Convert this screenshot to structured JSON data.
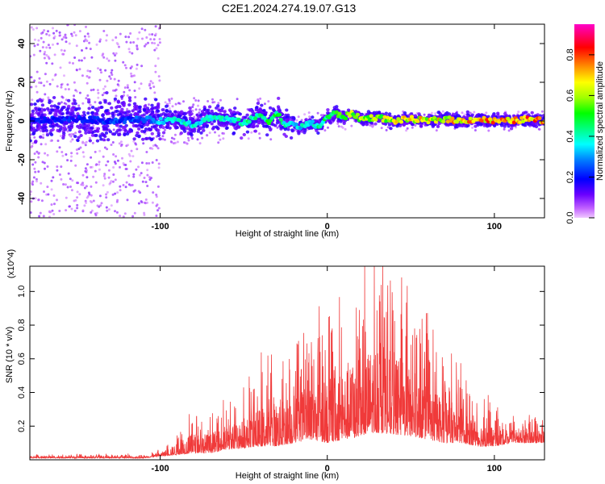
{
  "title": "C2E1.2024.274.19.07.G13",
  "chart_data": [
    {
      "type": "heatmap",
      "xlabel": "Height of straight line (km)",
      "ylabel": "Frequency (Hz)",
      "xlim": [
        -178,
        130
      ],
      "ylim": [
        -50,
        50
      ],
      "x_ticks": [
        -100,
        0,
        100
      ],
      "y_ticks": [
        -40,
        -20,
        0,
        20,
        40
      ],
      "colorbar": {
        "label": "Normalized spectral amplitude",
        "ticks": [
          0.0,
          0.2,
          0.4,
          0.6,
          0.8
        ],
        "range": [
          0.0,
          0.95
        ],
        "colormap": "rainbow (magenta-violet-blue-cyan-green-yellow-orange-red-magenta)"
      },
      "ridge": {
        "x": [
          -178,
          -150,
          -130,
          -110,
          -100,
          -90,
          -80,
          -70,
          -60,
          -50,
          -40,
          -35,
          -30,
          -25,
          -20,
          -15,
          -10,
          -5,
          0,
          5,
          10,
          15,
          20,
          30,
          40,
          50,
          60,
          70,
          80,
          90,
          100,
          110,
          120,
          130
        ],
        "frequency": [
          0,
          1,
          0,
          1,
          0,
          1,
          -2,
          2,
          1,
          -1,
          3,
          0,
          4,
          -2,
          -2,
          -3,
          -1,
          -3,
          2,
          4,
          2,
          4,
          1,
          2,
          0,
          1,
          0,
          1,
          0,
          1,
          0,
          0,
          1,
          0
        ],
        "amplitude": [
          0.25,
          0.25,
          0.28,
          0.3,
          0.4,
          0.45,
          0.45,
          0.45,
          0.45,
          0.5,
          0.5,
          0.55,
          0.55,
          0.5,
          0.45,
          0.45,
          0.45,
          0.5,
          0.55,
          0.6,
          0.65,
          0.7,
          0.72,
          0.72,
          0.75,
          0.78,
          0.8,
          0.82,
          0.85,
          0.87,
          0.88,
          0.9,
          0.92,
          0.92
        ]
      }
    },
    {
      "type": "line",
      "xlabel": "Height of straight line (km)",
      "ylabel": "SNR (10 * v/v)",
      "y_multiplier": "(x10^4)",
      "xlim": [
        -178,
        130
      ],
      "ylim": [
        0.0,
        1.15
      ],
      "x_ticks": [
        -100,
        0,
        100
      ],
      "y_ticks": [
        0.2,
        0.4,
        0.6,
        0.8,
        1.0
      ],
      "color": "#f03a3a",
      "series": [
        {
          "name": "",
          "envelope_x": [
            -178,
            -140,
            -110,
            -100,
            -90,
            -80,
            -70,
            -60,
            -50,
            -40,
            -30,
            -20,
            -10,
            0,
            10,
            20,
            25,
            30,
            40,
            50,
            60,
            70,
            80,
            90,
            100,
            110,
            120,
            130
          ],
          "envelope_upper": [
            0.03,
            0.03,
            0.03,
            0.06,
            0.15,
            0.26,
            0.25,
            0.33,
            0.38,
            0.5,
            0.58,
            0.65,
            0.72,
            0.78,
            0.88,
            0.98,
            1.08,
            1.15,
            1.05,
            0.88,
            0.72,
            0.6,
            0.48,
            0.36,
            0.28,
            0.24,
            0.25,
            0.24
          ],
          "envelope_lower": [
            0.01,
            0.01,
            0.01,
            0.02,
            0.03,
            0.04,
            0.04,
            0.06,
            0.07,
            0.08,
            0.08,
            0.1,
            0.12,
            0.1,
            0.12,
            0.14,
            0.16,
            0.16,
            0.15,
            0.14,
            0.12,
            0.1,
            0.1,
            0.08,
            0.08,
            0.1,
            0.1,
            0.1
          ]
        }
      ]
    }
  ]
}
